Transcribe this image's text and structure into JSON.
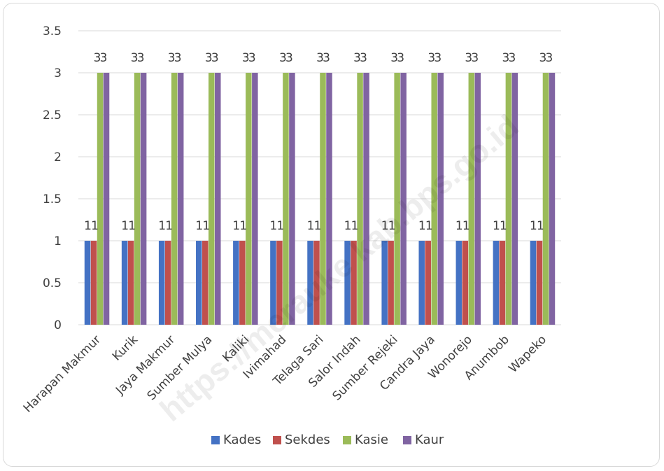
{
  "chart_data": {
    "type": "bar",
    "title": "",
    "xlabel": "",
    "ylabel": "",
    "ylim": [
      0,
      3.5
    ],
    "yticks": [
      "0",
      "0.5",
      "1",
      "1.5",
      "2",
      "2.5",
      "3",
      "3.5"
    ],
    "grid": true,
    "legend_position": "bottom",
    "categories": [
      "Harapan Makmur",
      "Kurik",
      "Jaya Makmur",
      "Sumber Mulya",
      "Kaliki",
      "Ivimahad",
      "Telaga Sari",
      "Salor Indah",
      "Sumber Rejeki",
      "Candra Jaya",
      "Wonorejo",
      "Anumbob",
      "Wapeko"
    ],
    "series": [
      {
        "name": "Kades",
        "color": "#4472c4",
        "values": [
          1,
          1,
          1,
          1,
          1,
          1,
          1,
          1,
          1,
          1,
          1,
          1,
          1
        ]
      },
      {
        "name": "Sekdes",
        "color": "#c0504d",
        "values": [
          1,
          1,
          1,
          1,
          1,
          1,
          1,
          1,
          1,
          1,
          1,
          1,
          1
        ]
      },
      {
        "name": "Kasie",
        "color": "#9bbb59",
        "values": [
          3,
          3,
          3,
          3,
          3,
          3,
          3,
          3,
          3,
          3,
          3,
          3,
          3
        ]
      },
      {
        "name": "Kaur",
        "color": "#8064a2",
        "values": [
          3,
          3,
          3,
          3,
          3,
          3,
          3,
          3,
          3,
          3,
          3,
          3,
          3
        ]
      }
    ],
    "watermark": "https://merauke kab.bps.go.id"
  }
}
